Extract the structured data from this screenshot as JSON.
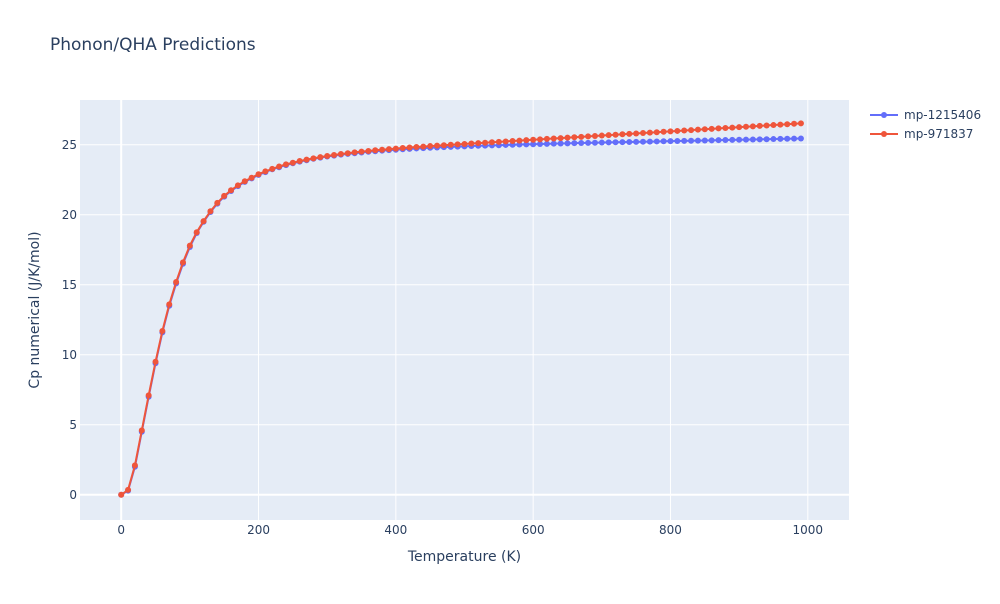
{
  "chart_data": {
    "type": "line",
    "title": "Phonon/QHA Predictions",
    "xlabel": "Temperature (K)",
    "ylabel": "Cp numerical (J/K/mol)",
    "xlim": [
      -60,
      1060
    ],
    "ylim": [
      -1.8,
      28.2
    ],
    "x_ticks": [
      0,
      200,
      400,
      600,
      800,
      1000
    ],
    "y_ticks": [
      0,
      5,
      10,
      15,
      20,
      25
    ],
    "grid": true,
    "legend_placement": "top-right",
    "series": [
      {
        "name": "mp-1215406",
        "color": "#636efa",
        "x": [
          0,
          10,
          20,
          30,
          40,
          50,
          60,
          70,
          80,
          90,
          100,
          110,
          120,
          130,
          140,
          150,
          160,
          170,
          180,
          190,
          200,
          210,
          220,
          230,
          240,
          250,
          260,
          270,
          280,
          290,
          300,
          310,
          320,
          330,
          340,
          350,
          360,
          370,
          380,
          390,
          400,
          410,
          420,
          430,
          440,
          450,
          460,
          470,
          480,
          490,
          500,
          510,
          520,
          530,
          540,
          550,
          560,
          570,
          580,
          590,
          600,
          610,
          620,
          630,
          640,
          650,
          660,
          670,
          680,
          690,
          700,
          710,
          720,
          730,
          740,
          750,
          760,
          770,
          780,
          790,
          800,
          810,
          820,
          830,
          840,
          850,
          860,
          870,
          880,
          890,
          900,
          910,
          920,
          930,
          940,
          950,
          960,
          970,
          980,
          990
        ],
        "y": [
          0,
          0.3,
          2.0,
          4.5,
          7.0,
          9.4,
          11.6,
          13.5,
          15.1,
          16.5,
          17.7,
          18.7,
          19.5,
          20.2,
          20.8,
          21.3,
          21.7,
          22.05,
          22.35,
          22.6,
          22.85,
          23.05,
          23.25,
          23.4,
          23.55,
          23.68,
          23.8,
          23.9,
          24.0,
          24.08,
          24.16,
          24.23,
          24.3,
          24.35,
          24.4,
          24.45,
          24.5,
          24.54,
          24.58,
          24.62,
          24.65,
          24.68,
          24.71,
          24.74,
          24.76,
          24.79,
          24.81,
          24.83,
          24.85,
          24.87,
          24.89,
          24.91,
          24.93,
          24.94,
          24.96,
          24.97,
          24.99,
          25.0,
          25.02,
          25.03,
          25.04,
          25.06,
          25.07,
          25.08,
          25.09,
          25.1,
          25.12,
          25.13,
          25.14,
          25.15,
          25.16,
          25.17,
          25.18,
          25.19,
          25.2,
          25.21,
          25.22,
          25.23,
          25.24,
          25.25,
          25.26,
          25.27,
          25.28,
          25.29,
          25.3,
          25.31,
          25.32,
          25.33,
          25.34,
          25.35,
          25.36,
          25.37,
          25.38,
          25.39,
          25.4,
          25.41,
          25.42,
          25.43,
          25.44,
          25.45
        ]
      },
      {
        "name": "mp-971837",
        "color": "#ef553b",
        "x": [
          0,
          10,
          20,
          30,
          40,
          50,
          60,
          70,
          80,
          90,
          100,
          110,
          120,
          130,
          140,
          150,
          160,
          170,
          180,
          190,
          200,
          210,
          220,
          230,
          240,
          250,
          260,
          270,
          280,
          290,
          300,
          310,
          320,
          330,
          340,
          350,
          360,
          370,
          380,
          390,
          400,
          410,
          420,
          430,
          440,
          450,
          460,
          470,
          480,
          490,
          500,
          510,
          520,
          530,
          540,
          550,
          560,
          570,
          580,
          590,
          600,
          610,
          620,
          630,
          640,
          650,
          660,
          670,
          680,
          690,
          700,
          710,
          720,
          730,
          740,
          750,
          760,
          770,
          780,
          790,
          800,
          810,
          820,
          830,
          840,
          850,
          860,
          870,
          880,
          890,
          900,
          910,
          920,
          930,
          940,
          950,
          960,
          970,
          980,
          990
        ],
        "y": [
          0,
          0.35,
          2.1,
          4.6,
          7.1,
          9.5,
          11.7,
          13.6,
          15.2,
          16.6,
          17.8,
          18.75,
          19.55,
          20.25,
          20.85,
          21.35,
          21.75,
          22.1,
          22.4,
          22.65,
          22.9,
          23.1,
          23.28,
          23.45,
          23.6,
          23.72,
          23.84,
          23.94,
          24.03,
          24.12,
          24.2,
          24.27,
          24.34,
          24.4,
          24.46,
          24.51,
          24.56,
          24.61,
          24.65,
          24.69,
          24.73,
          24.77,
          24.81,
          24.84,
          24.87,
          24.91,
          24.94,
          24.97,
          25.0,
          25.03,
          25.06,
          25.09,
          25.12,
          25.15,
          25.18,
          25.21,
          25.24,
          25.27,
          25.3,
          25.33,
          25.36,
          25.39,
          25.42,
          25.45,
          25.48,
          25.51,
          25.54,
          25.57,
          25.6,
          25.63,
          25.66,
          25.69,
          25.72,
          25.75,
          25.78,
          25.81,
          25.84,
          25.87,
          25.9,
          25.93,
          25.96,
          25.99,
          26.02,
          26.05,
          26.08,
          26.11,
          26.14,
          26.17,
          26.2,
          26.23,
          26.26,
          26.29,
          26.32,
          26.35,
          26.38,
          26.41,
          26.44,
          26.47,
          26.5,
          26.53
        ]
      }
    ]
  }
}
